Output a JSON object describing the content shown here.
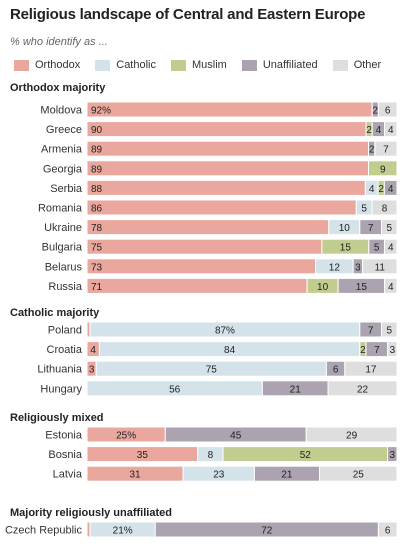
{
  "title": "Religious landscape of Central and Eastern Europe",
  "subtitle": "% who identify as ...",
  "colors": {
    "orthodox": "#eaa79e",
    "catholic": "#d4e2ea",
    "muslim": "#c1cc8f",
    "unaffiliated": "#aba3b0",
    "other": "#dedede"
  },
  "chart_data": {
    "type": "bar",
    "orientation": "horizontal",
    "stacked": true,
    "legend_position": "top",
    "series_names": [
      "Orthodox",
      "Catholic",
      "Muslim",
      "Unaffiliated",
      "Other"
    ],
    "series_keys": [
      "orthodox",
      "catholic",
      "muslim",
      "unaffiliated",
      "other"
    ],
    "groups": [
      {
        "label": "Orthodox majority",
        "rows": [
          {
            "country": "Moldova",
            "values": [
              92,
              0,
              0,
              2,
              6
            ],
            "labels": [
              "92%",
              "",
              "",
              "2",
              "6"
            ]
          },
          {
            "country": "Greece",
            "values": [
              90,
              0,
              2,
              4,
              4
            ],
            "labels": [
              "90",
              "",
              "2",
              "4",
              "4"
            ]
          },
          {
            "country": "Armenia",
            "values": [
              89,
              0,
              0,
              2,
              7
            ],
            "labels": [
              "89",
              "",
              "",
              "2",
              "7"
            ]
          },
          {
            "country": "Georgia",
            "values": [
              89,
              0,
              9,
              0,
              0
            ],
            "labels": [
              "89",
              "",
              "9",
              "",
              ""
            ]
          },
          {
            "country": "Serbia",
            "values": [
              88,
              4,
              2,
              4,
              0
            ],
            "labels": [
              "88",
              "4",
              "2",
              "4",
              ""
            ]
          },
          {
            "country": "Romania",
            "values": [
              86,
              5,
              0,
              0,
              8
            ],
            "labels": [
              "86",
              "5",
              "",
              "",
              "8"
            ]
          },
          {
            "country": "Ukraine",
            "values": [
              78,
              10,
              0,
              7,
              5
            ],
            "labels": [
              "78",
              "10",
              "",
              "7",
              "5"
            ]
          },
          {
            "country": "Bulgaria",
            "values": [
              75,
              0,
              15,
              5,
              4
            ],
            "labels": [
              "75",
              "",
              "15",
              "5",
              "4"
            ]
          },
          {
            "country": "Belarus",
            "values": [
              73,
              12,
              0,
              3,
              11
            ],
            "labels": [
              "73",
              "12",
              "",
              "3",
              "11"
            ]
          },
          {
            "country": "Russia",
            "values": [
              71,
              0,
              10,
              15,
              4
            ],
            "labels": [
              "71",
              "",
              "10",
              "15",
              "4"
            ]
          }
        ]
      },
      {
        "label": "Catholic majority",
        "rows": [
          {
            "country": "Poland",
            "values": [
              1,
              87,
              0,
              7,
              5
            ],
            "labels": [
              "",
              "87%",
              "",
              "7",
              "5"
            ]
          },
          {
            "country": "Croatia",
            "values": [
              4,
              84,
              2,
              7,
              3
            ],
            "labels": [
              "4",
              "84",
              "2",
              "7",
              "3"
            ]
          },
          {
            "country": "Lithuania",
            "values": [
              3,
              75,
              0,
              6,
              17
            ],
            "labels": [
              "3",
              "75",
              "",
              "6",
              "17"
            ]
          },
          {
            "country": "Hungary",
            "values": [
              0,
              56,
              0,
              21,
              22
            ],
            "labels": [
              "",
              "56",
              "",
              "21",
              "22"
            ]
          }
        ]
      },
      {
        "label": "Religiously mixed",
        "rows": [
          {
            "country": "Estonia",
            "values": [
              25,
              0,
              0,
              45,
              29
            ],
            "labels": [
              "25%",
              "",
              "",
              "45",
              "29"
            ]
          },
          {
            "country": "Bosnia",
            "values": [
              35,
              8,
              52,
              3,
              0
            ],
            "labels": [
              "35",
              "8",
              "52",
              "3",
              ""
            ]
          },
          {
            "country": "Latvia",
            "values": [
              31,
              23,
              0,
              21,
              25
            ],
            "labels": [
              "31",
              "23",
              "",
              "21",
              "25"
            ]
          }
        ]
      },
      {
        "label": "Majority religiously unaffiliated",
        "rows": [
          {
            "country": "Czech Republic",
            "values": [
              1,
              21,
              0,
              72,
              6
            ],
            "labels": [
              "",
              "21%",
              "",
              "72",
              "6"
            ]
          }
        ]
      }
    ]
  }
}
